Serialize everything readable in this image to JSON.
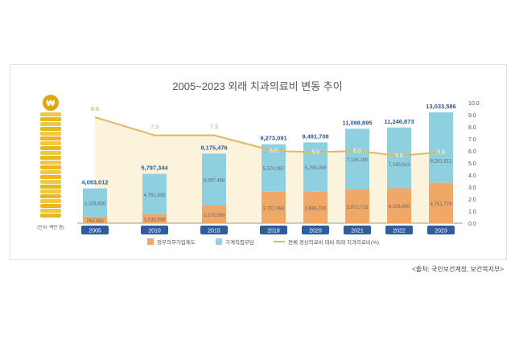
{
  "chart_data": {
    "type": "bar",
    "title": "2005~2023 외래 치과의료비 변동 추이",
    "unit_label": "(단위: 백만 원)",
    "categories": [
      "2005",
      "2010",
      "2015",
      "2019",
      "2020",
      "2021",
      "2022",
      "2023"
    ],
    "series": [
      {
        "name": "정부의무가입제도",
        "color": "#f0a868",
        "values": [
          764382,
          1035539,
          2078008,
          3702994,
          3696700,
          3972715,
          4106860,
          4751774
        ],
        "labels": [
          "764,382",
          "1,035,539",
          "2,078,008",
          "3,702,994",
          "3,696,700",
          "3,972,715",
          "4,106,860",
          "4,751,774"
        ]
      },
      {
        "name": "가계직접부담",
        "color": "#8fd0e0",
        "values": [
          3328630,
          4761805,
          6097468,
          5570097,
          5795008,
          7126180,
          7140013,
          8281812
        ],
        "labels": [
          "3,328,630",
          "4,761,805",
          "6,097,468",
          "5,570,097",
          "5,795,008",
          "7,126,180",
          "7,140,013",
          "8,281,812"
        ]
      }
    ],
    "totals": [
      "4,093,012",
      "5,797,344",
      "8,175,476",
      "9,273,091",
      "9,491,708",
      "11,098,895",
      "11,246,873",
      "13,033,586"
    ],
    "line": {
      "name": "전체 경상의료비 대비 외래 치과의료비(%)",
      "color": "#e0b860",
      "values": [
        8.8,
        7.3,
        7.3,
        6.0,
        5.9,
        6.0,
        5.6,
        5.9
      ],
      "labels": [
        "8.8",
        "7.3",
        "7.3",
        "6.0",
        "5.9",
        "6.0",
        "5.6",
        "5.9"
      ]
    },
    "y2_ticks": [
      "0.0",
      "1.0",
      "2.0",
      "3.0",
      "4.0",
      "5.0",
      "6.0",
      "7.0",
      "8.0",
      "9.0",
      "10.0"
    ],
    "y2lim": [
      0,
      10
    ],
    "legend_placement": "bottom",
    "coin_icon": "won-coin-stack-icon"
  },
  "source": "<출처: 국민보건계정, 보건복지부>"
}
